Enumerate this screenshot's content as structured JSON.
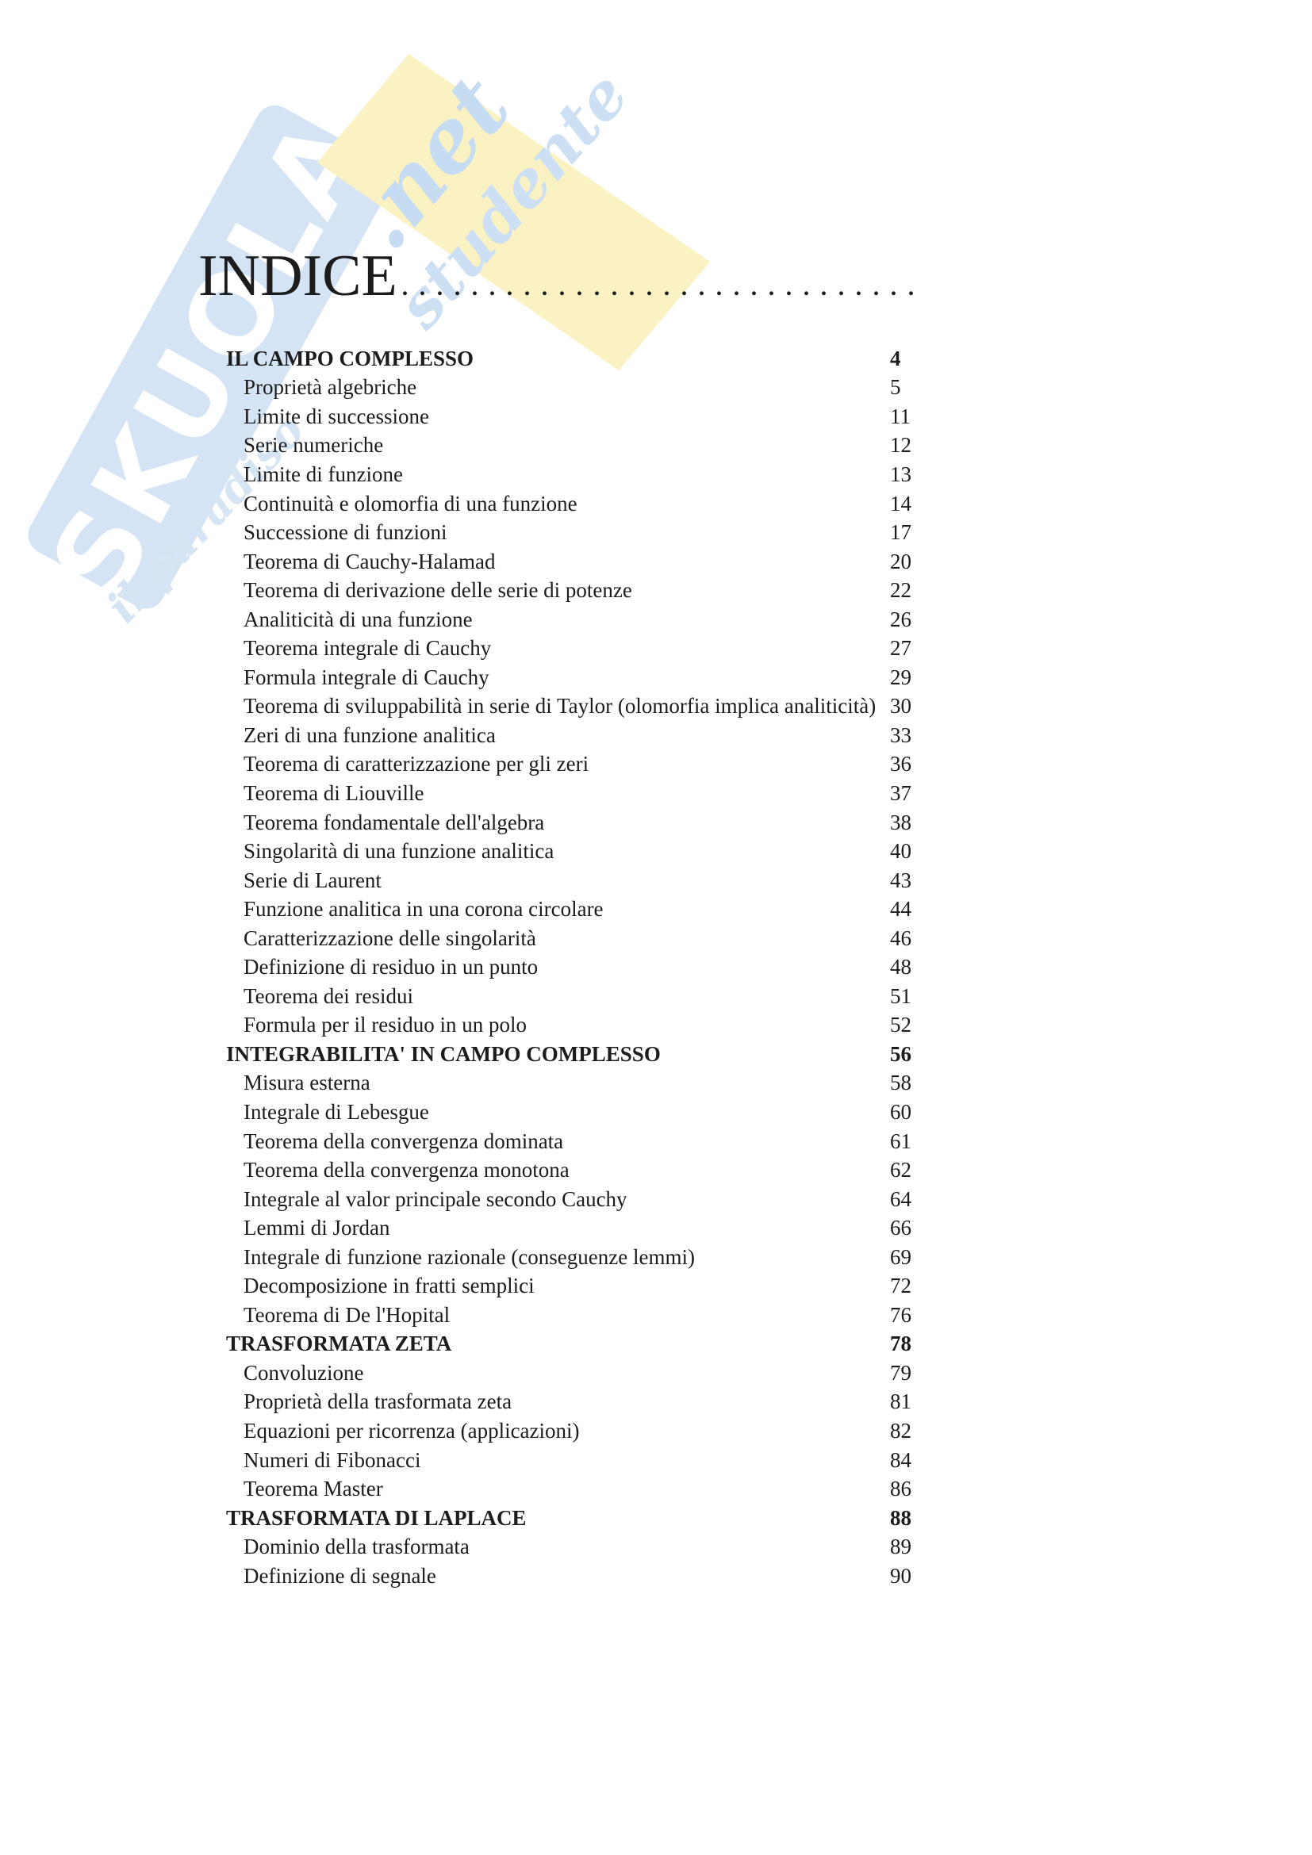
{
  "colors": {
    "text": "#1c1c1c",
    "watermark_blue_band": "#d4e4f4",
    "watermark_blue_script": "#cde0f3",
    "watermark_yellow": "#fbf2c4",
    "background": "#ffffff"
  },
  "watermark": {
    "brand": "SKUOLA",
    "tld": ".net",
    "slogan_fragment_left": "il paradiso",
    "slogan_fragment_right": "studente"
  },
  "title": {
    "text": "INDICE",
    "dots": ".............................."
  },
  "toc": {
    "entries": [
      {
        "label": "IL CAMPO COMPLESSO",
        "page": "4",
        "level": "section"
      },
      {
        "label": "Proprietà algebriche",
        "page": "5",
        "level": "item"
      },
      {
        "label": "Limite di successione",
        "page": "11",
        "level": "item"
      },
      {
        "label": "Serie numeriche",
        "page": "12",
        "level": "item"
      },
      {
        "label": "Limite di funzione",
        "page": "13",
        "level": "item"
      },
      {
        "label": "Continuità e olomorfia di una funzione",
        "page": "14",
        "level": "item"
      },
      {
        "label": "Successione di funzioni",
        "page": "17",
        "level": "item"
      },
      {
        "label": "Teorema di Cauchy-Halamad",
        "page": "20",
        "level": "item"
      },
      {
        "label": "Teorema di derivazione delle serie di potenze",
        "page": "22",
        "level": "item"
      },
      {
        "label": "Analiticità di una funzione",
        "page": "26",
        "level": "item"
      },
      {
        "label": "Teorema integrale di Cauchy",
        "page": "27",
        "level": "item"
      },
      {
        "label": "Formula integrale di Cauchy",
        "page": "29",
        "level": "item"
      },
      {
        "label": "Teorema di sviluppabilità in serie di Taylor (olomorfia implica analiticità)",
        "page": "30",
        "level": "item"
      },
      {
        "label": "Zeri di una funzione analitica",
        "page": "33",
        "level": "item"
      },
      {
        "label": "Teorema di caratterizzazione per gli zeri",
        "page": "36",
        "level": "item"
      },
      {
        "label": "Teorema di Liouville",
        "page": "37",
        "level": "item"
      },
      {
        "label": "Teorema fondamentale dell'algebra",
        "page": "38",
        "level": "item"
      },
      {
        "label": "Singolarità di una funzione analitica",
        "page": "40",
        "level": "item"
      },
      {
        "label": "Serie di Laurent",
        "page": "43",
        "level": "item"
      },
      {
        "label": "Funzione analitica in una corona circolare",
        "page": "44",
        "level": "item"
      },
      {
        "label": "Caratterizzazione delle singolarità",
        "page": "46",
        "level": "item"
      },
      {
        "label": "Definizione di residuo in un punto",
        "page": "48",
        "level": "item"
      },
      {
        "label": "Teorema dei residui",
        "page": "51",
        "level": "item"
      },
      {
        "label": "Formula per il residuo in un polo",
        "page": "52",
        "level": "item"
      },
      {
        "label": "INTEGRABILITA' IN CAMPO COMPLESSO",
        "page": "56",
        "level": "section"
      },
      {
        "label": "Misura esterna",
        "page": "58",
        "level": "item"
      },
      {
        "label": "Integrale di Lebesgue",
        "page": "60",
        "level": "item"
      },
      {
        "label": "Teorema della convergenza dominata",
        "page": "61",
        "level": "item"
      },
      {
        "label": "Teorema della convergenza monotona",
        "page": "62",
        "level": "item"
      },
      {
        "label": "Integrale al valor principale secondo Cauchy",
        "page": "64",
        "level": "item"
      },
      {
        "label": "Lemmi di Jordan",
        "page": "66",
        "level": "item"
      },
      {
        "label": "Integrale di funzione razionale (conseguenze lemmi)",
        "page": "69",
        "level": "item"
      },
      {
        "label": "Decomposizione in fratti semplici",
        "page": "72",
        "level": "item"
      },
      {
        "label": "Teorema di De l'Hopital",
        "page": "76",
        "level": "item"
      },
      {
        "label": "TRASFORMATA ZETA",
        "page": "78",
        "level": "section"
      },
      {
        "label": "Convoluzione",
        "page": "79",
        "level": "item"
      },
      {
        "label": "Proprietà della trasformata zeta",
        "page": "81",
        "level": "item"
      },
      {
        "label": "Equazioni per ricorrenza (applicazioni)",
        "page": "82",
        "level": "item"
      },
      {
        "label": "Numeri di Fibonacci",
        "page": "84",
        "level": "item"
      },
      {
        "label": "Teorema Master",
        "page": "86",
        "level": "item"
      },
      {
        "label": "TRASFORMATA DI LAPLACE",
        "page": "88",
        "level": "section"
      },
      {
        "label": "Dominio della trasformata",
        "page": "89",
        "level": "item"
      },
      {
        "label": "Definizione di segnale",
        "page": "90",
        "level": "item"
      }
    ]
  }
}
